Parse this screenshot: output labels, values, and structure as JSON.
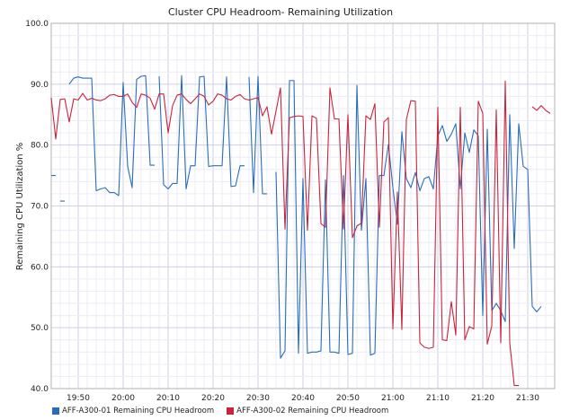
{
  "chart_data": {
    "type": "line",
    "title": "Cluster CPU Headroom- Remaining Utilization",
    "xlabel": "",
    "ylabel": "Remaining CPU Utilization %",
    "ylim": [
      40,
      100
    ],
    "yticks": [
      "40.0",
      "50.0",
      "60.0",
      "70.0",
      "80.0",
      "90.0",
      "100.0"
    ],
    "xlim": [
      "19:44",
      "21:36"
    ],
    "xticks": [
      "19:50",
      "20:00",
      "20:10",
      "20:20",
      "20:30",
      "20:40",
      "20:50",
      "21:00",
      "21:10",
      "21:20",
      "21:30"
    ],
    "grid": true,
    "legend_position": "bottom-left",
    "series": [
      {
        "name": "AFF-A300-01 Remaining CPU Headroom",
        "color": "#2a6ebb",
        "points": [
          [
            "19:44",
            75.0
          ],
          [
            "19:45",
            75.0
          ],
          null,
          [
            "19:46",
            70.8
          ],
          [
            "19:47",
            70.8
          ],
          null,
          [
            "19:48",
            90.0
          ],
          [
            "19:49",
            91.0
          ],
          [
            "19:50",
            91.2
          ],
          [
            "19:51",
            91.0
          ],
          [
            "19:52",
            91.0
          ],
          [
            "19:53",
            91.0
          ],
          [
            "19:54",
            72.5
          ],
          [
            "19:55",
            72.8
          ],
          [
            "19:56",
            73.0
          ],
          [
            "19:57",
            72.2
          ],
          [
            "19:58",
            72.2
          ],
          [
            "19:59",
            71.7
          ],
          [
            "20:00",
            90.3
          ],
          [
            "20:01",
            76.5
          ],
          [
            "20:02",
            73.0
          ],
          [
            "20:03",
            90.8
          ],
          [
            "20:04",
            91.3
          ],
          [
            "20:05",
            91.4
          ],
          [
            "20:06",
            76.7
          ],
          [
            "20:07",
            76.7
          ],
          null,
          [
            "20:08",
            91.3
          ],
          [
            "20:09",
            73.5
          ],
          [
            "20:10",
            72.8
          ],
          [
            "20:11",
            73.7
          ],
          [
            "20:12",
            73.7
          ],
          [
            "20:13",
            91.4
          ],
          [
            "20:14",
            72.8
          ],
          [
            "20:15",
            76.6
          ],
          [
            "20:16",
            76.6
          ],
          [
            "20:17",
            91.2
          ],
          [
            "20:18",
            91.3
          ],
          [
            "20:19",
            76.5
          ],
          [
            "20:20",
            76.6
          ],
          [
            "20:21",
            76.6
          ],
          [
            "20:22",
            76.6
          ],
          [
            "20:23",
            91.2
          ],
          [
            "20:24",
            73.2
          ],
          [
            "20:25",
            73.3
          ],
          [
            "20:26",
            76.6
          ],
          [
            "20:27",
            76.6
          ],
          null,
          [
            "20:28",
            91.2
          ],
          [
            "20:29",
            72.2
          ],
          [
            "20:30",
            91.3
          ],
          [
            "20:31",
            72.0
          ],
          [
            "20:32",
            72.0
          ],
          null,
          [
            "20:34",
            75.6
          ],
          [
            "20:35",
            45.0
          ],
          [
            "20:36",
            46.2
          ],
          [
            "20:37",
            90.6
          ],
          [
            "20:38",
            90.6
          ],
          [
            "20:39",
            45.8
          ],
          [
            "20:40",
            74.5
          ],
          [
            "20:41",
            45.8
          ],
          [
            "20:42",
            46.0
          ],
          [
            "20:43",
            46.0
          ],
          [
            "20:44",
            46.2
          ],
          [
            "20:45",
            74.3
          ],
          [
            "20:46",
            46.0
          ],
          [
            "20:47",
            46.0
          ],
          [
            "20:48",
            45.8
          ],
          [
            "20:49",
            75.0
          ],
          [
            "20:50",
            45.6
          ],
          [
            "20:51",
            45.8
          ],
          [
            "20:52",
            89.8
          ],
          [
            "20:53",
            66.0
          ],
          [
            "20:54",
            74.5
          ],
          [
            "20:55",
            45.5
          ],
          [
            "20:56",
            45.8
          ],
          [
            "20:57",
            75.0
          ],
          [
            "20:58",
            75.0
          ],
          [
            "20:59",
            80.1
          ],
          [
            "21:00",
            73.0
          ],
          [
            "21:01",
            67.0
          ],
          [
            "21:02",
            82.2
          ],
          [
            "21:03",
            74.5
          ],
          [
            "21:04",
            73.0
          ],
          [
            "21:05",
            75.5
          ],
          [
            "21:06",
            72.5
          ],
          [
            "21:07",
            74.5
          ],
          [
            "21:08",
            74.8
          ],
          [
            "21:09",
            72.8
          ],
          [
            "21:10",
            81.5
          ],
          [
            "21:11",
            83.2
          ],
          [
            "21:12",
            80.6
          ],
          [
            "21:13",
            81.8
          ],
          [
            "21:14",
            83.5
          ],
          [
            "21:15",
            72.8
          ],
          [
            "21:16",
            82.0
          ],
          [
            "21:17",
            78.8
          ],
          [
            "21:18",
            82.5
          ],
          [
            "21:19",
            81.5
          ],
          [
            "21:20",
            52.0
          ],
          [
            "21:21",
            82.6
          ],
          [
            "21:22",
            52.8
          ],
          [
            "21:23",
            54.0
          ],
          [
            "21:24",
            52.8
          ],
          [
            "21:25",
            51.0
          ],
          [
            "21:26",
            85.0
          ],
          [
            "21:27",
            63.0
          ],
          [
            "21:28",
            83.5
          ],
          [
            "21:29",
            76.5
          ],
          [
            "21:30",
            76.0
          ],
          [
            "21:31",
            53.5
          ],
          [
            "21:32",
            52.6
          ],
          [
            "21:33",
            53.5
          ]
        ]
      },
      {
        "name": "AFF-A300-02 Remaining CPU Headroom",
        "color": "#c8253c",
        "points": [
          [
            "19:44",
            87.8
          ],
          [
            "19:45",
            81.0
          ],
          [
            "19:46",
            87.5
          ],
          [
            "19:47",
            87.6
          ],
          [
            "19:48",
            83.8
          ],
          [
            "19:49",
            87.6
          ],
          [
            "19:50",
            87.4
          ],
          [
            "19:51",
            88.5
          ],
          [
            "19:52",
            87.4
          ],
          [
            "19:53",
            87.7
          ],
          [
            "19:54",
            87.4
          ],
          [
            "19:55",
            87.3
          ],
          [
            "19:56",
            87.6
          ],
          [
            "19:57",
            88.2
          ],
          [
            "19:58",
            88.3
          ],
          [
            "19:59",
            88.0
          ],
          [
            "20:00",
            88.0
          ],
          [
            "20:01",
            88.4
          ],
          [
            "20:02",
            87.0
          ],
          [
            "20:03",
            86.2
          ],
          [
            "20:04",
            88.4
          ],
          [
            "20:05",
            88.2
          ],
          [
            "20:06",
            87.7
          ],
          [
            "20:07",
            85.9
          ],
          [
            "20:08",
            88.4
          ],
          [
            "20:09",
            88.4
          ],
          [
            "20:10",
            82.0
          ],
          [
            "20:11",
            86.5
          ],
          [
            "20:12",
            88.2
          ],
          [
            "20:13",
            88.4
          ],
          [
            "20:14",
            87.5
          ],
          [
            "20:15",
            86.8
          ],
          [
            "20:16",
            87.6
          ],
          [
            "20:17",
            88.4
          ],
          [
            "20:18",
            88.0
          ],
          [
            "20:19",
            86.6
          ],
          [
            "20:20",
            87.2
          ],
          [
            "20:21",
            88.4
          ],
          [
            "20:22",
            88.2
          ],
          [
            "20:23",
            87.6
          ],
          [
            "20:24",
            87.4
          ],
          [
            "20:25",
            88.0
          ],
          [
            "20:26",
            88.3
          ],
          [
            "20:27",
            87.6
          ],
          [
            "20:28",
            87.4
          ],
          [
            "20:29",
            87.6
          ],
          [
            "20:30",
            87.8
          ],
          [
            "20:31",
            84.8
          ],
          [
            "20:32",
            86.3
          ],
          [
            "20:33",
            81.8
          ],
          [
            "20:34",
            85.6
          ],
          [
            "20:35",
            89.4
          ],
          [
            "20:36",
            66.2
          ],
          [
            "20:37",
            84.5
          ],
          [
            "20:38",
            84.7
          ],
          [
            "20:39",
            84.8
          ],
          [
            "20:40",
            84.7
          ],
          [
            "20:41",
            66.0
          ],
          [
            "20:42",
            84.8
          ],
          [
            "20:43",
            84.4
          ],
          [
            "20:44",
            67.1
          ],
          [
            "20:45",
            66.5
          ],
          [
            "20:46",
            89.4
          ],
          [
            "20:47",
            84.3
          ],
          [
            "20:48",
            84.3
          ],
          [
            "20:49",
            66.2
          ],
          [
            "20:50",
            85.0
          ],
          [
            "20:51",
            64.8
          ],
          [
            "20:52",
            66.7
          ],
          [
            "20:53",
            67.2
          ],
          [
            "20:54",
            84.8
          ],
          [
            "20:55",
            84.2
          ],
          [
            "20:56",
            86.8
          ],
          [
            "20:57",
            66.5
          ],
          [
            "20:58",
            83.8
          ],
          [
            "20:59",
            84.5
          ],
          [
            "21:00",
            49.8
          ],
          [
            "21:01",
            72.3
          ],
          [
            "21:02",
            49.7
          ],
          [
            "21:03",
            84.2
          ],
          [
            "21:04",
            87.3
          ],
          [
            "21:05",
            87.2
          ],
          [
            "21:06",
            47.5
          ],
          [
            "21:07",
            46.8
          ],
          [
            "21:08",
            46.6
          ],
          [
            "21:09",
            46.8
          ],
          [
            "21:10",
            86.2
          ],
          [
            "21:11",
            48.0
          ],
          [
            "21:12",
            47.9
          ],
          [
            "21:13",
            54.3
          ],
          [
            "21:14",
            48.8
          ],
          [
            "21:15",
            86.2
          ],
          [
            "21:16",
            48.0
          ],
          [
            "21:17",
            50.2
          ],
          [
            "21:18",
            49.8
          ],
          [
            "21:19",
            87.2
          ],
          [
            "21:20",
            85.2
          ],
          [
            "21:21",
            47.3
          ],
          [
            "21:22",
            50.3
          ],
          [
            "21:23",
            85.8
          ],
          [
            "21:24",
            47.5
          ],
          [
            "21:25",
            90.5
          ],
          [
            "21:26",
            47.5
          ],
          [
            "21:27",
            40.5
          ],
          [
            "21:28",
            40.5
          ],
          null,
          [
            "21:31",
            86.3
          ],
          [
            "21:32",
            85.7
          ],
          [
            "21:33",
            86.5
          ],
          [
            "21:34",
            85.7
          ],
          [
            "21:35",
            85.2
          ]
        ]
      }
    ]
  }
}
